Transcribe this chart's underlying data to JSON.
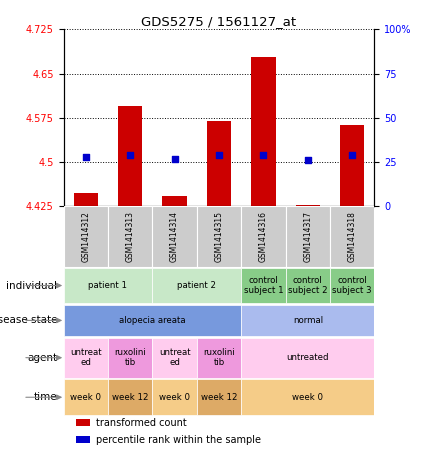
{
  "title": "GDS5275 / 1561127_at",
  "samples": [
    "GSM1414312",
    "GSM1414313",
    "GSM1414314",
    "GSM1414315",
    "GSM1414316",
    "GSM1414317",
    "GSM1414318"
  ],
  "transformed_count": [
    4.448,
    4.595,
    4.443,
    4.57,
    4.678,
    4.428,
    4.563
  ],
  "percentile_rank": [
    28,
    29,
    27,
    29,
    29,
    26,
    29
  ],
  "ylim_left": [
    4.425,
    4.725
  ],
  "ylim_right": [
    0,
    100
  ],
  "yticks_left": [
    4.425,
    4.5,
    4.575,
    4.65,
    4.725
  ],
  "yticks_right": [
    0,
    25,
    50,
    75,
    100
  ],
  "bar_color": "#cc0000",
  "dot_color": "#0000cc",
  "sample_box_color": "#cccccc",
  "annotation_rows": [
    {
      "label": "individual",
      "cells": [
        {
          "text": "patient 1",
          "span": 2,
          "color": "#c8e8c8"
        },
        {
          "text": "patient 2",
          "span": 2,
          "color": "#c8e8c8"
        },
        {
          "text": "control\nsubject 1",
          "span": 1,
          "color": "#88cc88"
        },
        {
          "text": "control\nsubject 2",
          "span": 1,
          "color": "#88cc88"
        },
        {
          "text": "control\nsubject 3",
          "span": 1,
          "color": "#88cc88"
        }
      ]
    },
    {
      "label": "disease state",
      "cells": [
        {
          "text": "alopecia areata",
          "span": 4,
          "color": "#7799dd"
        },
        {
          "text": "normal",
          "span": 3,
          "color": "#aabbee"
        }
      ]
    },
    {
      "label": "agent",
      "cells": [
        {
          "text": "untreat\ned",
          "span": 1,
          "color": "#ffccee"
        },
        {
          "text": "ruxolini\ntib",
          "span": 1,
          "color": "#ee99dd"
        },
        {
          "text": "untreat\ned",
          "span": 1,
          "color": "#ffccee"
        },
        {
          "text": "ruxolini\ntib",
          "span": 1,
          "color": "#ee99dd"
        },
        {
          "text": "untreated",
          "span": 3,
          "color": "#ffccee"
        }
      ]
    },
    {
      "label": "time",
      "cells": [
        {
          "text": "week 0",
          "span": 1,
          "color": "#f5cc88"
        },
        {
          "text": "week 12",
          "span": 1,
          "color": "#ddaa66"
        },
        {
          "text": "week 0",
          "span": 1,
          "color": "#f5cc88"
        },
        {
          "text": "week 12",
          "span": 1,
          "color": "#ddaa66"
        },
        {
          "text": "week 0",
          "span": 3,
          "color": "#f5cc88"
        }
      ]
    }
  ],
  "legend_items": [
    {
      "color": "#cc0000",
      "label": "transformed count"
    },
    {
      "color": "#0000cc",
      "label": "percentile rank within the sample"
    }
  ]
}
